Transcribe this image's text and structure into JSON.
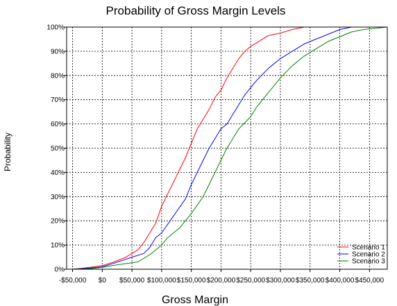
{
  "chart_data": {
    "type": "line",
    "title": "Probability of Gross Margin Levels",
    "xlabel": "Gross Margin",
    "ylabel": "Probability",
    "xlim": [
      -60000,
      480000
    ],
    "ylim": [
      0,
      1
    ],
    "x_ticks": [
      -50000,
      0,
      50000,
      100000,
      150000,
      200000,
      250000,
      300000,
      350000,
      400000,
      450000
    ],
    "x_tick_labels": [
      "-$50,000",
      "$0",
      "$50,000",
      "$100,000",
      "$150,000",
      "$200,000",
      "$250,000",
      "$300,000",
      "$350,000",
      "$400,000",
      "$450,000"
    ],
    "y_ticks": [
      0,
      0.1,
      0.2,
      0.3,
      0.4,
      0.5,
      0.6,
      0.7,
      0.8,
      0.9,
      1.0
    ],
    "y_tick_labels": [
      "0%",
      "10%",
      "20%",
      "30%",
      "40%",
      "50%",
      "60%",
      "70%",
      "80%",
      "90%",
      "100%"
    ],
    "grid": true,
    "legend_position": "bottom-right",
    "series": [
      {
        "name": "Scenario 1",
        "color": "#ff0000",
        "points": [
          [
            -50000,
            0
          ],
          [
            -30000,
            0.005
          ],
          [
            0,
            0.015
          ],
          [
            20000,
            0.03
          ],
          [
            40000,
            0.05
          ],
          [
            60000,
            0.08
          ],
          [
            70000,
            0.11
          ],
          [
            80000,
            0.15
          ],
          [
            90000,
            0.19
          ],
          [
            100000,
            0.26
          ],
          [
            110000,
            0.31
          ],
          [
            120000,
            0.36
          ],
          [
            130000,
            0.41
          ],
          [
            140000,
            0.46
          ],
          [
            150000,
            0.52
          ],
          [
            160000,
            0.58
          ],
          [
            170000,
            0.62
          ],
          [
            180000,
            0.66
          ],
          [
            190000,
            0.71
          ],
          [
            200000,
            0.74
          ],
          [
            210000,
            0.79
          ],
          [
            220000,
            0.83
          ],
          [
            230000,
            0.87
          ],
          [
            240000,
            0.9
          ],
          [
            250000,
            0.92
          ],
          [
            260000,
            0.935
          ],
          [
            270000,
            0.95
          ],
          [
            280000,
            0.965
          ],
          [
            300000,
            0.975
          ],
          [
            320000,
            0.99
          ],
          [
            340000,
            1.0
          ],
          [
            480000,
            1.0
          ]
        ]
      },
      {
        "name": "Scenario 2",
        "color": "#0000ff",
        "points": [
          [
            -50000,
            0
          ],
          [
            -20000,
            0.005
          ],
          [
            0,
            0.01
          ],
          [
            20000,
            0.025
          ],
          [
            50000,
            0.05
          ],
          [
            70000,
            0.065
          ],
          [
            80000,
            0.09
          ],
          [
            90000,
            0.13
          ],
          [
            100000,
            0.15
          ],
          [
            120000,
            0.22
          ],
          [
            140000,
            0.29
          ],
          [
            150000,
            0.35
          ],
          [
            160000,
            0.4
          ],
          [
            170000,
            0.45
          ],
          [
            180000,
            0.5
          ],
          [
            190000,
            0.54
          ],
          [
            200000,
            0.58
          ],
          [
            210000,
            0.6
          ],
          [
            220000,
            0.64
          ],
          [
            230000,
            0.68
          ],
          [
            240000,
            0.72
          ],
          [
            250000,
            0.75
          ],
          [
            260000,
            0.78
          ],
          [
            280000,
            0.83
          ],
          [
            300000,
            0.87
          ],
          [
            320000,
            0.9
          ],
          [
            340000,
            0.93
          ],
          [
            360000,
            0.95
          ],
          [
            380000,
            0.97
          ],
          [
            400000,
            0.99
          ],
          [
            420000,
            1.0
          ],
          [
            480000,
            1.0
          ]
        ]
      },
      {
        "name": "Scenario 3",
        "color": "#008000",
        "points": [
          [
            -50000,
            0
          ],
          [
            -20000,
            0.002
          ],
          [
            0,
            0.008
          ],
          [
            30000,
            0.02
          ],
          [
            60000,
            0.03
          ],
          [
            80000,
            0.06
          ],
          [
            100000,
            0.1
          ],
          [
            110000,
            0.13
          ],
          [
            130000,
            0.17
          ],
          [
            150000,
            0.23
          ],
          [
            170000,
            0.3
          ],
          [
            180000,
            0.35
          ],
          [
            190000,
            0.4
          ],
          [
            200000,
            0.45
          ],
          [
            210000,
            0.5
          ],
          [
            220000,
            0.54
          ],
          [
            230000,
            0.58
          ],
          [
            250000,
            0.63
          ],
          [
            260000,
            0.67
          ],
          [
            280000,
            0.73
          ],
          [
            300000,
            0.79
          ],
          [
            320000,
            0.84
          ],
          [
            340000,
            0.88
          ],
          [
            360000,
            0.91
          ],
          [
            380000,
            0.94
          ],
          [
            400000,
            0.96
          ],
          [
            420000,
            0.98
          ],
          [
            440000,
            0.99
          ],
          [
            460000,
            0.995
          ],
          [
            480000,
            1.0
          ]
        ]
      }
    ]
  }
}
